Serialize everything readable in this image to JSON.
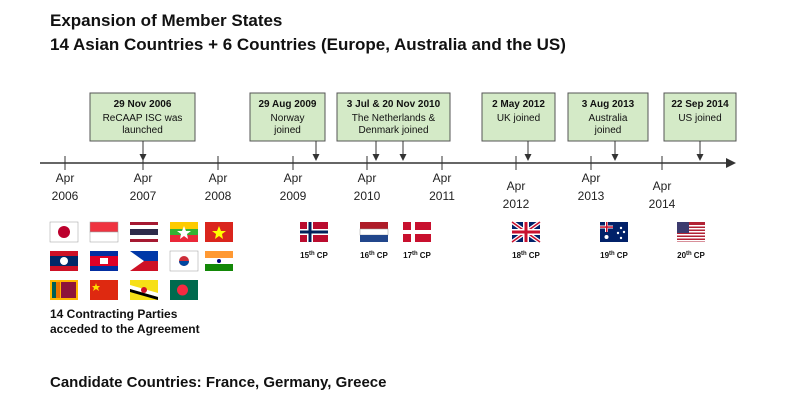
{
  "header": {
    "title": "Expansion of Member States",
    "subtitle": "14 Asian Countries + 6 Countries (Europe, Australia and the US)"
  },
  "events": [
    {
      "date": "29 Nov 2006",
      "lines": [
        "ReCAAP ISC was",
        "launched"
      ]
    },
    {
      "date": "29 Aug 2009",
      "lines": [
        "Norway",
        "joined"
      ]
    },
    {
      "date": "3 Jul & 20 Nov 2010",
      "lines": [
        "The Netherlands &",
        "Denmark joined"
      ]
    },
    {
      "date": "2 May 2012",
      "lines": [
        "UK joined"
      ]
    },
    {
      "date": "3 Aug 2013",
      "lines": [
        "Australia",
        "joined"
      ]
    },
    {
      "date": "22 Sep 2014",
      "lines": [
        "US joined"
      ]
    }
  ],
  "ticks": [
    {
      "month": "Apr",
      "year": "2006"
    },
    {
      "month": "Apr",
      "year": "2007"
    },
    {
      "month": "Apr",
      "year": "2008"
    },
    {
      "month": "Apr",
      "year": "2009"
    },
    {
      "month": "Apr",
      "year": "2010"
    },
    {
      "month": "Apr",
      "year": "2011"
    },
    {
      "month": "Apr",
      "year": "2012"
    },
    {
      "month": "Apr",
      "year": "2013"
    },
    {
      "month": "Apr",
      "year": "2014"
    }
  ],
  "parties": [
    {
      "num": "15",
      "sup": "th",
      "label": "CP"
    },
    {
      "num": "16",
      "sup": "th",
      "label": "CP"
    },
    {
      "num": "17",
      "sup": "th",
      "label": "CP"
    },
    {
      "num": "18",
      "sup": "th",
      "label": "CP"
    },
    {
      "num": "19",
      "sup": "th",
      "label": "CP"
    },
    {
      "num": "20",
      "sup": "th",
      "label": "CP"
    }
  ],
  "asian_caption": [
    "14 Contracting Parties",
    "acceded to the Agreement"
  ],
  "footer": "Candidate Countries: France, Germany, Greece"
}
